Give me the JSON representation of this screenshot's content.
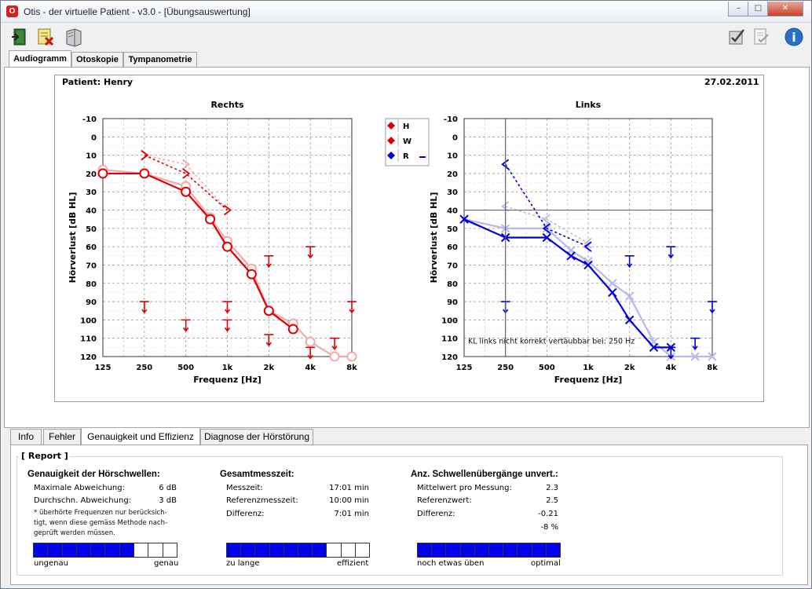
{
  "window": {
    "title": "Otis - der virtuelle Patient - v3.0 - [Übungsauswertung]",
    "app_icon_letter": "O",
    "min_label": "–",
    "max_label": "□",
    "close_label": "✕"
  },
  "toolbar": {
    "icons": [
      "exit-door-icon",
      "delete-notes-icon",
      "book-icon",
      "pen-check-icon",
      "document-check-icon",
      "info-icon"
    ],
    "info_glyph": "i"
  },
  "main_tabs": [
    {
      "label": "Audiogramm",
      "active": true
    },
    {
      "label": "Otoskopie",
      "active": false
    },
    {
      "label": "Tympanometrie",
      "active": false
    }
  ],
  "patient": {
    "label": "Patient: Henry",
    "date": "27.02.2011"
  },
  "chart_data": [
    {
      "type": "line",
      "title": "Rechts",
      "xlabel": "Frequenz [Hz]",
      "ylabel": "Hörverlust [dB HL]",
      "x_ticks": [
        "125",
        "250",
        "500",
        "1k",
        "2k",
        "4k",
        "8k"
      ],
      "y_ticks": [
        "-10",
        "0",
        "10",
        "20",
        "30",
        "40",
        "50",
        "60",
        "70",
        "80",
        "90",
        "100",
        "110",
        "120"
      ],
      "ylim": [
        -10,
        120
      ],
      "inverted_y": true,
      "grid": true,
      "series": [
        {
          "kind": "air-reference",
          "color": "#f5aaaa",
          "x": [
            125,
            250,
            500,
            750,
            1000,
            1500,
            2000,
            3000,
            4000,
            6000,
            8000
          ],
          "y": [
            18,
            20,
            27,
            44,
            57,
            72,
            95,
            102,
            112,
            120,
            120
          ]
        },
        {
          "kind": "air-measured",
          "color": "#e10000",
          "x": [
            125,
            250,
            500,
            750,
            1000,
            1500,
            2000,
            3000
          ],
          "y": [
            20,
            20,
            30,
            45,
            60,
            75,
            95,
            105
          ]
        },
        {
          "kind": "bone-reference",
          "color": "#f5aaaa",
          "x": [
            250,
            500,
            1000
          ],
          "y": [
            10,
            15,
            40
          ]
        },
        {
          "kind": "bone-measured",
          "color": "#e10000",
          "x": [
            250,
            500,
            1000
          ],
          "y": [
            10,
            20,
            40
          ]
        }
      ],
      "no_response_arrows": [
        {
          "x": 250,
          "y": 90
        },
        {
          "x": 500,
          "y": 100
        },
        {
          "x": 1000,
          "y": 90
        },
        {
          "x": 1000,
          "y": 100
        },
        {
          "x": 2000,
          "y": 65
        },
        {
          "x": 2000,
          "y": 108
        },
        {
          "x": 4000,
          "y": 60
        },
        {
          "x": 4000,
          "y": 115
        },
        {
          "x": 6000,
          "y": 110
        },
        {
          "x": 8000,
          "y": 90
        }
      ]
    },
    {
      "type": "line",
      "title": "Links",
      "xlabel": "Frequenz [Hz]",
      "ylabel": "Hörverlust [dB HL]",
      "x_ticks": [
        "125",
        "250",
        "500",
        "1k",
        "2k",
        "4k",
        "8k"
      ],
      "y_ticks": [
        "-10",
        "0",
        "10",
        "20",
        "30",
        "40",
        "50",
        "60",
        "70",
        "80",
        "90",
        "100",
        "110",
        "120"
      ],
      "ylim": [
        -10,
        120
      ],
      "inverted_y": true,
      "grid": true,
      "annotation": "KL links nicht korrekt vertäubbar bei: 250 Hz",
      "series": [
        {
          "kind": "air-reference",
          "color": "#b8b8ee",
          "x": [
            125,
            250,
            500,
            750,
            1000,
            1500,
            2000,
            3000,
            4000,
            6000,
            8000
          ],
          "y": [
            45,
            50,
            50,
            62,
            68,
            80,
            87,
            112,
            120,
            120,
            120
          ]
        },
        {
          "kind": "air-measured",
          "color": "#0000dd",
          "x": [
            125,
            250,
            500,
            750,
            1000,
            1500,
            2000,
            3000,
            4000
          ],
          "y": [
            45,
            55,
            55,
            65,
            70,
            85,
            100,
            115,
            115
          ]
        },
        {
          "kind": "bone-reference",
          "color": "#b8b8ee",
          "x": [
            250,
            500,
            1000
          ],
          "y": [
            38,
            45,
            58
          ]
        },
        {
          "kind": "bone-measured",
          "color": "#0000dd",
          "x": [
            250,
            500,
            1000
          ],
          "y": [
            15,
            50,
            60
          ]
        }
      ],
      "no_response_arrows": [
        {
          "x": 250,
          "y": 90
        },
        {
          "x": 2000,
          "y": 65
        },
        {
          "x": 4000,
          "y": 60
        },
        {
          "x": 4000,
          "y": 115
        },
        {
          "x": 6000,
          "y": 110
        },
        {
          "x": 8000,
          "y": 90
        }
      ]
    }
  ],
  "legend": {
    "items": [
      {
        "label": "H",
        "color": "#e10000"
      },
      {
        "label": "W",
        "color": "#e10000"
      },
      {
        "label": "R",
        "color": "#0000dd"
      }
    ]
  },
  "bottom_tabs": [
    {
      "label": "Info",
      "active": false
    },
    {
      "label": "Fehler",
      "active": false
    },
    {
      "label": "Genauigkeit und Effizienz",
      "active": true
    },
    {
      "label": "Diagnose der Hörstörung",
      "active": false
    }
  ],
  "report": {
    "label": "[ Report ]",
    "accuracy": {
      "title": "Genauigkeit der Hörschwellen:",
      "rows": [
        {
          "label": "Maximale Abweichung:",
          "value": "6 dB"
        },
        {
          "label": "Durchschn. Abweichung:",
          "value": "3 dB"
        }
      ],
      "note_lines": [
        "* überhörte Frequenzen nur berücksich-",
        "tigt, wenn diese gemäss Methode nach-",
        "geprüft werden müssen."
      ],
      "bar_filled": 7,
      "bar_total": 10,
      "bar_left": "ungenau",
      "bar_right": "genau"
    },
    "time": {
      "title": "Gesamtmesszeit:",
      "rows": [
        {
          "label": "Messzeit:",
          "value": "17:01 min"
        },
        {
          "label": "Referenzmesszeit:",
          "value": "10:00 min"
        },
        {
          "label": "Differenz:",
          "value": "7:01 min"
        }
      ],
      "bar_filled": 7,
      "bar_total": 10,
      "bar_left": "zu lange",
      "bar_right": "effizient"
    },
    "thresholds": {
      "title": "Anz. Schwellenübergänge unvert.:",
      "rows": [
        {
          "label": "Mittelwert pro Messung:",
          "value": "2.3"
        },
        {
          "label": "Referenzwert:",
          "value": "2.5"
        },
        {
          "label": "Differenz:",
          "value": "-0.21"
        },
        {
          "label": "",
          "value": "-8 %"
        }
      ],
      "bar_filled": 10,
      "bar_total": 10,
      "bar_left": "noch etwas üben",
      "bar_right": "optimal"
    }
  }
}
